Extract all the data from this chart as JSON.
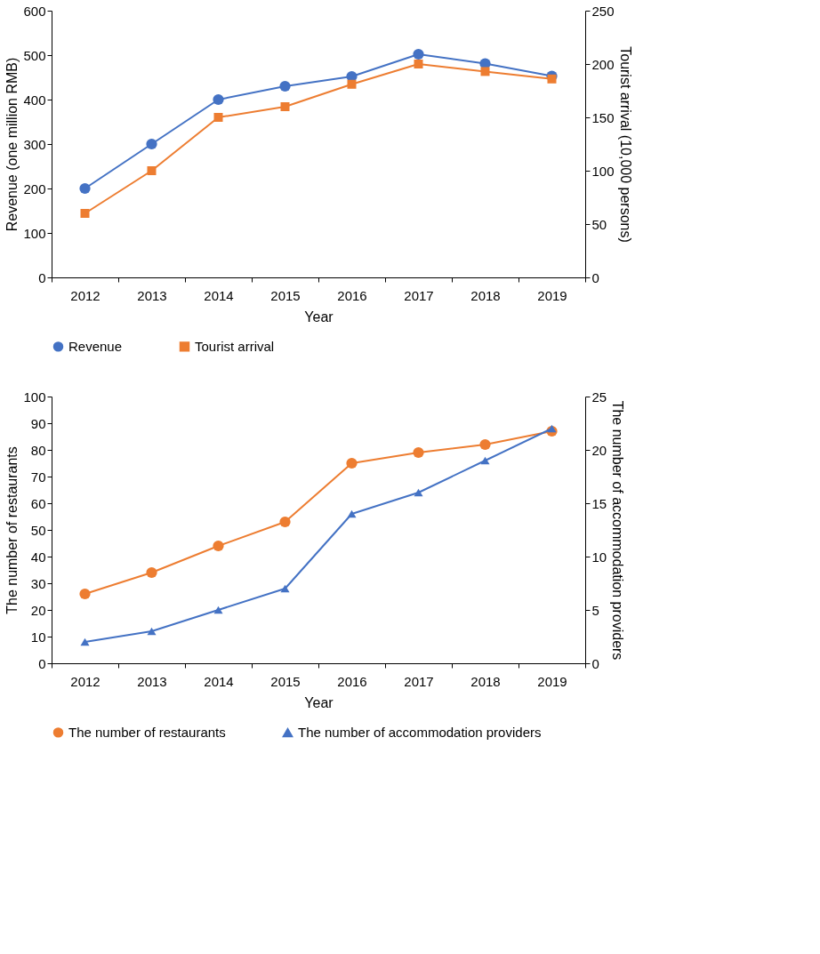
{
  "chart_data": [
    {
      "type": "line",
      "xlabel": "Year",
      "ylabel": "Revenue (one million RMB)",
      "y2label": "Tourist arrival (10,000 persons)",
      "categories": [
        "2012",
        "2013",
        "2014",
        "2015",
        "2016",
        "2017",
        "2018",
        "2019"
      ],
      "series": [
        {
          "name": "Revenue",
          "color": "#4472c4",
          "marker": "circle",
          "values": [
            200,
            300,
            400,
            430,
            452,
            502,
            481,
            453
          ]
        },
        {
          "name": "Tourist arrival",
          "color": "#ed7d31",
          "marker": "square",
          "axis": "y2",
          "values": [
            60,
            100,
            150,
            160,
            181,
            200,
            193,
            186
          ]
        }
      ],
      "ylim": [
        0,
        600
      ],
      "yticks": [
        0,
        100,
        200,
        300,
        400,
        500,
        600
      ],
      "y2lim": [
        0,
        250
      ],
      "y2ticks": [
        0,
        50,
        100,
        150,
        200,
        250
      ],
      "grid": false,
      "legend": "bottom"
    },
    {
      "type": "line",
      "xlabel": "Year",
      "ylabel": "The number of restaurants",
      "y2label": "The number of accommodation providers",
      "categories": [
        "2012",
        "2013",
        "2014",
        "2015",
        "2016",
        "2017",
        "2018",
        "2019"
      ],
      "series": [
        {
          "name": "The number of restaurants",
          "color": "#ed7d31",
          "marker": "circle",
          "values": [
            26,
            34,
            44,
            53,
            75,
            79,
            82,
            87
          ]
        },
        {
          "name": "The number of accommodation providers",
          "color": "#4472c4",
          "marker": "triangle",
          "axis": "y2",
          "values": [
            2,
            3,
            5,
            7,
            14,
            16,
            19,
            22
          ]
        }
      ],
      "ylim": [
        0,
        100
      ],
      "yticks": [
        0,
        10,
        20,
        30,
        40,
        50,
        60,
        70,
        80,
        90,
        100
      ],
      "y2lim": [
        0,
        25
      ],
      "y2ticks": [
        0,
        5,
        10,
        15,
        20,
        25
      ],
      "grid": false,
      "legend": "bottom"
    }
  ]
}
